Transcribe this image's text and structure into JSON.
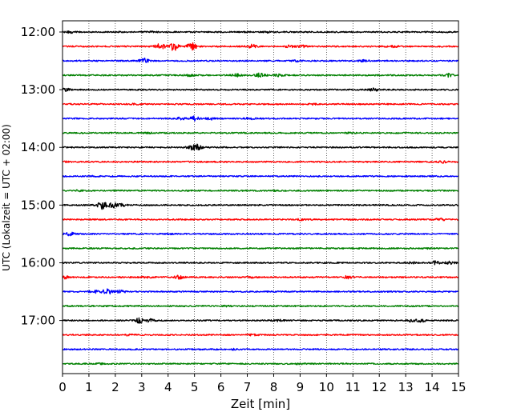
{
  "chart_data": {
    "type": "line",
    "title": "",
    "xlabel": "Zeit  [min]",
    "ylabel": "UTC (Lokalzeit = UTC + 02:00)",
    "xlim": [
      0,
      15
    ],
    "x_ticks": [
      "0",
      "1",
      "2",
      "3",
      "4",
      "5",
      "6",
      "7",
      "8",
      "9",
      "10",
      "11",
      "12",
      "13",
      "14",
      "15"
    ],
    "y_ticks": [
      "12:00",
      "13:00",
      "14:00",
      "15:00",
      "16:00",
      "17:00"
    ],
    "grid": "vertical-dotted",
    "colors": [
      "#000000",
      "#ff0000",
      "#0000ff",
      "#008000"
    ],
    "series": [
      {
        "start": "12:00",
        "color": "#000000",
        "bursts": [
          [
            0.3,
            0.9
          ],
          [
            3.4,
            0.6
          ],
          [
            7.8,
            0.6
          ]
        ]
      },
      {
        "start": "12:15",
        "color": "#ff0000",
        "bursts": [
          [
            3.7,
            3.0
          ],
          [
            4.2,
            5.0
          ],
          [
            4.9,
            4.0
          ],
          [
            7.2,
            2.0
          ],
          [
            8.6,
            1.2
          ],
          [
            9.1,
            1.4
          ],
          [
            12.5,
            0.9
          ]
        ]
      },
      {
        "start": "12:30",
        "color": "#0000ff",
        "bursts": [
          [
            3.1,
            3.5
          ],
          [
            8.9,
            0.8
          ],
          [
            11.4,
            0.9
          ]
        ]
      },
      {
        "start": "12:45",
        "color": "#008000",
        "bursts": [
          [
            4.8,
            0.9
          ],
          [
            6.6,
            1.5
          ],
          [
            7.5,
            2.5
          ],
          [
            8.2,
            1.4
          ],
          [
            14.6,
            1.8
          ]
        ]
      },
      {
        "start": "13:00",
        "color": "#000000",
        "bursts": [
          [
            0.1,
            1.4
          ],
          [
            11.8,
            1.5
          ]
        ]
      },
      {
        "start": "13:15",
        "color": "#ff0000",
        "bursts": [
          [
            2.8,
            0.6
          ],
          [
            9.5,
            0.5
          ]
        ]
      },
      {
        "start": "13:30",
        "color": "#0000ff",
        "bursts": [
          [
            4.5,
            1.4
          ],
          [
            5.0,
            2.5
          ],
          [
            5.6,
            1.4
          ],
          [
            7.1,
            0.8
          ]
        ]
      },
      {
        "start": "13:45",
        "color": "#008000",
        "bursts": [
          [
            3.3,
            0.5
          ],
          [
            6.8,
            0.5
          ],
          [
            10.9,
            0.5
          ]
        ]
      },
      {
        "start": "14:00",
        "color": "#000000",
        "bursts": [
          [
            4.9,
            2.0
          ],
          [
            5.1,
            3.0
          ]
        ]
      },
      {
        "start": "14:15",
        "color": "#ff0000",
        "bursts": [
          [
            0.1,
            0.6
          ],
          [
            14.4,
            0.9
          ]
        ]
      },
      {
        "start": "14:30",
        "color": "#0000ff",
        "bursts": [
          [
            1.2,
            0.4
          ]
        ]
      },
      {
        "start": "14:45",
        "color": "#008000",
        "bursts": [
          [
            0.6,
            0.5
          ],
          [
            8.1,
            0.4
          ]
        ]
      },
      {
        "start": "15:00",
        "color": "#000000",
        "bursts": [
          [
            1.5,
            4.5
          ],
          [
            1.9,
            3.0
          ],
          [
            2.3,
            1.3
          ]
        ]
      },
      {
        "start": "15:15",
        "color": "#ff0000",
        "bursts": [
          [
            9.0,
            0.7
          ],
          [
            14.3,
            1.2
          ]
        ]
      },
      {
        "start": "15:30",
        "color": "#0000ff",
        "bursts": [
          [
            0.3,
            1.8
          ],
          [
            4.0,
            0.5
          ]
        ]
      },
      {
        "start": "15:45",
        "color": "#008000",
        "bursts": [
          [
            13.8,
            0.4
          ]
        ]
      },
      {
        "start": "16:00",
        "color": "#000000",
        "bursts": [
          [
            13.2,
            1.3
          ],
          [
            14.1,
            2.2
          ],
          [
            14.7,
            1.8
          ]
        ]
      },
      {
        "start": "16:15",
        "color": "#ff0000",
        "bursts": [
          [
            0.1,
            1.5
          ],
          [
            3.2,
            0.8
          ],
          [
            4.4,
            1.8
          ],
          [
            7.1,
            0.8
          ],
          [
            10.8,
            1.5
          ]
        ]
      },
      {
        "start": "16:30",
        "color": "#0000ff",
        "bursts": [
          [
            1.2,
            1.6
          ],
          [
            1.7,
            3.0
          ],
          [
            2.2,
            1.5
          ]
        ]
      },
      {
        "start": "16:45",
        "color": "#008000",
        "bursts": [
          [
            6.2,
            0.5
          ]
        ]
      },
      {
        "start": "17:00",
        "color": "#000000",
        "bursts": [
          [
            2.9,
            2.8
          ],
          [
            3.3,
            1.5
          ],
          [
            8.2,
            0.9
          ],
          [
            13.2,
            1.2
          ],
          [
            13.6,
            1.6
          ]
        ]
      },
      {
        "start": "17:15",
        "color": "#ff0000",
        "bursts": [
          [
            2.5,
            0.7
          ],
          [
            7.2,
            0.6
          ]
        ]
      },
      {
        "start": "17:30",
        "color": "#0000ff",
        "bursts": [
          [
            6.5,
            0.5
          ]
        ]
      },
      {
        "start": "17:45",
        "color": "#008000",
        "bursts": [
          [
            1.4,
            0.4
          ],
          [
            8.9,
            0.4
          ]
        ]
      }
    ]
  }
}
